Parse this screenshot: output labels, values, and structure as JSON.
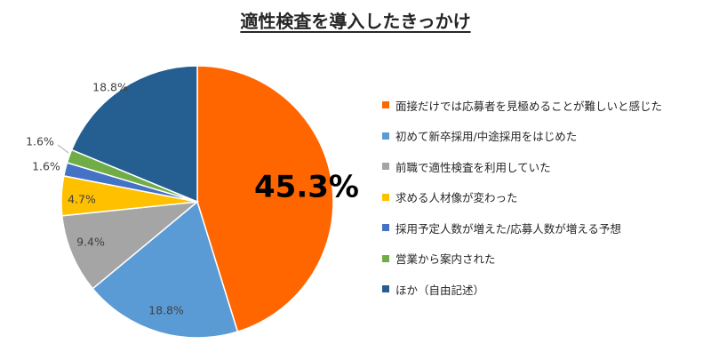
{
  "chart_data": {
    "type": "pie",
    "title": "適性検査を導入したきっかけ",
    "start_angle_deg": 0,
    "direction": "clockwise",
    "legend_position": "right",
    "slices": [
      {
        "label": "面接だけでは応募者を見極めることが難しいと感じた",
        "value": 45.3,
        "display": "45.3%",
        "color": "#FF6600"
      },
      {
        "label": "初めて新卒採用/中途採用をはじめた",
        "value": 18.8,
        "display": "18.8%",
        "color": "#5B9BD5"
      },
      {
        "label": "前職で適性検査を利用していた",
        "value": 9.4,
        "display": "9.4%",
        "color": "#A5A5A5"
      },
      {
        "label": "求める人材像が変わった",
        "value": 4.7,
        "display": "4.7%",
        "color": "#FFC000"
      },
      {
        "label": "採用予定人数が増えた/応募人数が増える予想",
        "value": 1.6,
        "display": "1.6%",
        "color": "#4472C4"
      },
      {
        "label": "営業から案内された",
        "value": 1.6,
        "display": "1.6%",
        "color": "#70AD47"
      },
      {
        "label": "ほか（自由記述）",
        "value": 18.8,
        "display": "18.8%",
        "color": "#255E91"
      }
    ]
  }
}
